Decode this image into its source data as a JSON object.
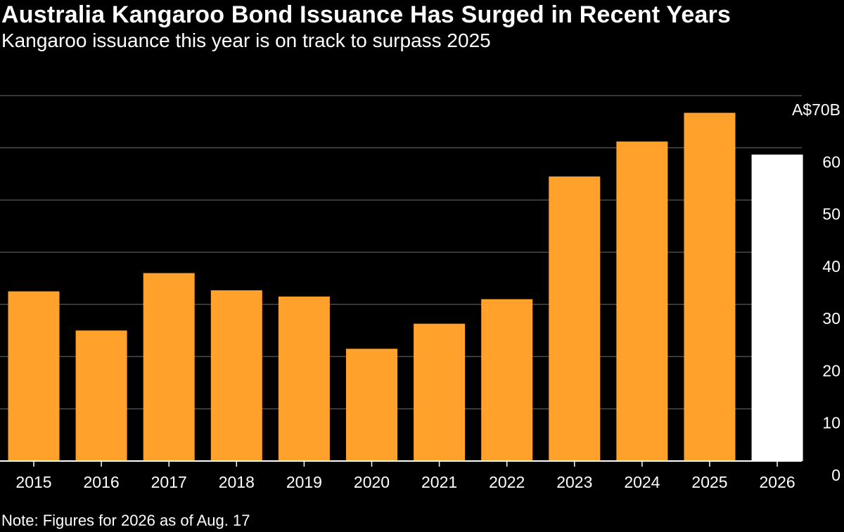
{
  "title": "Australia Kangaroo Bond Issuance Has Surged in Recent Years",
  "subtitle": "Kangaroo issuance this year is on track to surpass 2025",
  "note": "Note: Figures for 2026 as of Aug. 17",
  "colors": {
    "background": "#000000",
    "bar": "#ffa12b",
    "highlight_bar": "#ffffff",
    "gridline": "#4a4a4a",
    "axis": "#ffffff",
    "text": "#ffffff"
  },
  "chart_data": {
    "type": "bar",
    "categories": [
      "2015",
      "2016",
      "2017",
      "2018",
      "2019",
      "2020",
      "2021",
      "2022",
      "2023",
      "2024",
      "2025",
      "2026"
    ],
    "values": [
      32.5,
      25,
      36,
      32.7,
      31.5,
      21.5,
      26.3,
      31,
      54.5,
      61.2,
      66.7,
      58.7
    ],
    "highlight_category": "2026",
    "ylim": [
      0,
      70
    ],
    "yticks": [
      0,
      10,
      20,
      30,
      40,
      50,
      60,
      70
    ],
    "ytick_labels": [
      "0",
      "10",
      "20",
      "30",
      "40",
      "50",
      "60",
      "A$70B"
    ],
    "y_axis_position": "right",
    "grid": true,
    "legend": false,
    "title": "Australia Kangaroo Bond Issuance Has Surged in Recent Years",
    "xlabel": "",
    "ylabel": ""
  }
}
